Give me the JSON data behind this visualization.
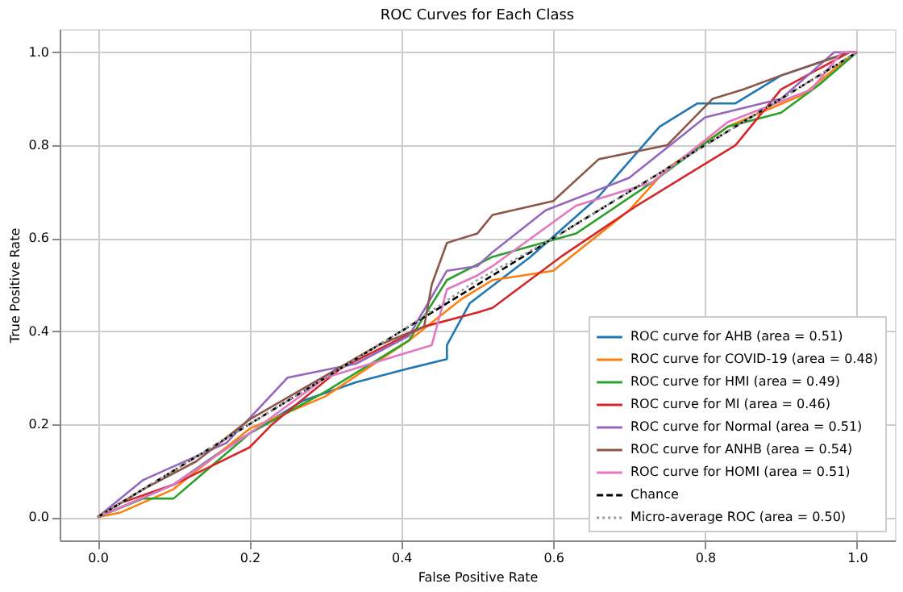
{
  "chart_data": {
    "type": "line",
    "title": "ROC Curves for Each Class",
    "xlabel": "False Positive Rate",
    "ylabel": "True Positive Rate",
    "xlim": [
      -0.05,
      1.05
    ],
    "ylim": [
      -0.05,
      1.05
    ],
    "xticks": [
      {
        "value": 0,
        "label": "0.0"
      },
      0.2,
      0.4,
      0.6,
      0.8,
      {
        "value": 1,
        "label": "1.0"
      }
    ],
    "yticks": [
      {
        "value": 0,
        "label": "0.0"
      },
      0.2,
      0.4,
      0.6,
      0.8,
      {
        "value": 1,
        "label": "1.0"
      }
    ],
    "grid": true,
    "legend": "bottom right",
    "marker": "none",
    "series": [
      {
        "name": "ROC curve for AHB (area = 0.51)",
        "color": "#1f77b4",
        "line_style": "solid",
        "x": [
          0,
          0.1,
          0.17,
          0.27,
          0.34,
          0.41,
          0.46,
          0.46,
          0.49,
          0.57,
          0.66,
          0.74,
          0.79,
          0.84,
          0.9,
          0.99,
          1
        ],
        "values": [
          0,
          0.07,
          0.15,
          0.25,
          0.29,
          0.32,
          0.34,
          0.37,
          0.46,
          0.56,
          0.69,
          0.84,
          0.89,
          0.89,
          0.95,
          1,
          1
        ]
      },
      {
        "name": "ROC curve for COVID-19 (area = 0.48)",
        "color": "#ff7f0e",
        "line_style": "solid",
        "x": [
          0,
          0.03,
          0.1,
          0.2,
          0.3,
          0.41,
          0.48,
          0.52,
          0.6,
          0.7,
          0.75,
          0.83,
          0.93,
          0.99,
          1
        ],
        "values": [
          0,
          0.01,
          0.06,
          0.19,
          0.26,
          0.38,
          0.47,
          0.51,
          0.53,
          0.66,
          0.75,
          0.84,
          0.91,
          0.99,
          1
        ]
      },
      {
        "name": "ROC curve for HMI (area = 0.49)",
        "color": "#2ca02c",
        "line_style": "solid",
        "x": [
          0,
          0.06,
          0.1,
          0.2,
          0.3,
          0.41,
          0.46,
          0.52,
          0.63,
          0.73,
          0.83,
          0.9,
          0.95,
          1
        ],
        "values": [
          0,
          0.04,
          0.04,
          0.18,
          0.27,
          0.38,
          0.51,
          0.56,
          0.61,
          0.72,
          0.84,
          0.87,
          0.93,
          1
        ]
      },
      {
        "name": "ROC curve for MI (area = 0.46)",
        "color": "#d62728",
        "line_style": "solid",
        "x": [
          0,
          0.03,
          0.1,
          0.2,
          0.23,
          0.32,
          0.43,
          0.5,
          0.52,
          0.61,
          0.71,
          0.79,
          0.84,
          0.9,
          0.99,
          1
        ],
        "values": [
          0,
          0.03,
          0.07,
          0.15,
          0.2,
          0.32,
          0.41,
          0.44,
          0.45,
          0.56,
          0.67,
          0.75,
          0.8,
          0.92,
          1,
          1
        ]
      },
      {
        "name": "ROC curve for Normal (area = 0.51)",
        "color": "#9467bd",
        "line_style": "solid",
        "x": [
          0,
          0.06,
          0.17,
          0.25,
          0.34,
          0.41,
          0.46,
          0.5,
          0.52,
          0.59,
          0.7,
          0.8,
          0.9,
          0.97,
          1
        ],
        "values": [
          0,
          0.08,
          0.16,
          0.3,
          0.33,
          0.39,
          0.53,
          0.54,
          0.57,
          0.66,
          0.73,
          0.86,
          0.9,
          1,
          1
        ]
      },
      {
        "name": "ROC curve for ANHB (area = 0.54)",
        "color": "#8c564b",
        "line_style": "solid",
        "x": [
          0,
          0.06,
          0.13,
          0.2,
          0.37,
          0.43,
          0.44,
          0.46,
          0.5,
          0.52,
          0.6,
          0.66,
          0.75,
          0.81,
          0.85,
          0.9,
          0.99,
          1
        ],
        "values": [
          0,
          0.06,
          0.12,
          0.21,
          0.37,
          0.41,
          0.5,
          0.59,
          0.61,
          0.65,
          0.68,
          0.77,
          0.8,
          0.9,
          0.92,
          0.95,
          1,
          1
        ]
      },
      {
        "name": "ROC curve for HOMI (area = 0.51)",
        "color": "#e377c2",
        "line_style": "solid",
        "x": [
          0,
          0.1,
          0.2,
          0.3,
          0.44,
          0.46,
          0.5,
          0.52,
          0.63,
          0.73,
          0.83,
          0.94,
          0.98,
          1
        ],
        "values": [
          0,
          0.07,
          0.18,
          0.3,
          0.37,
          0.49,
          0.52,
          0.54,
          0.67,
          0.72,
          0.85,
          0.92,
          1,
          1
        ]
      },
      {
        "name": "Chance",
        "color": "#000000",
        "line_style": "dashed",
        "x": [
          0,
          1
        ],
        "values": [
          0,
          1
        ]
      },
      {
        "name": "Micro-average ROC (area = 0.50)",
        "color": "#999999",
        "line_style": "dotted",
        "x": [
          0,
          0.2,
          0.4,
          0.5,
          0.6,
          0.8,
          1
        ],
        "values": [
          0,
          0.2,
          0.4,
          0.51,
          0.6,
          0.8,
          1
        ]
      }
    ]
  }
}
